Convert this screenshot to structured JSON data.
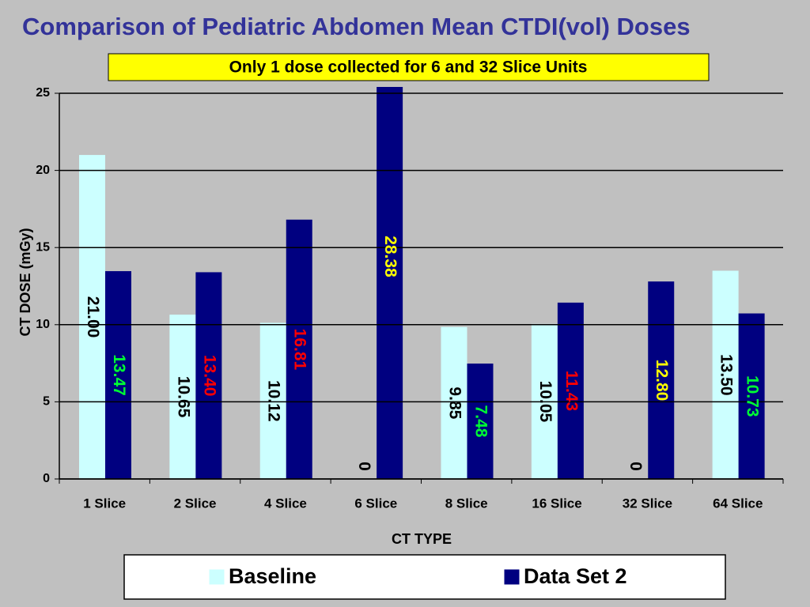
{
  "chart_data": {
    "type": "bar",
    "title": "Comparison of Pediatric Abdomen Mean CTDI(vol) Doses",
    "subtitle": "Only 1 dose collected for 6 and 32 Slice Units",
    "x_label": "CT TYPE",
    "y_label": "CT DOSE (mGy)",
    "categories": [
      "1 Slice",
      "2 Slice",
      "4 Slice",
      "6 Slice",
      "8 Slice",
      "16 Slice",
      "32 Slice",
      "64 Slice"
    ],
    "series": [
      {
        "name": "Baseline",
        "color": "#ccffff",
        "values": [
          21.0,
          10.65,
          10.12,
          0,
          9.85,
          10.05,
          0,
          13.5
        ],
        "value_labels": [
          "21.00",
          "10.65",
          "10.12",
          "0",
          "9.85",
          "10.05",
          "0",
          "13.50"
        ],
        "label_colors": [
          "#000000",
          "#000000",
          "#000000",
          "#000000",
          "#000000",
          "#000000",
          "#000000",
          "#000000"
        ]
      },
      {
        "name": "Data Set 2",
        "color": "#000080",
        "values": [
          13.47,
          13.4,
          16.81,
          28.38,
          7.48,
          11.43,
          12.8,
          10.73
        ],
        "value_labels": [
          "13.47",
          "13.40",
          "16.81",
          "28.38",
          "7.48",
          "11.43",
          "12.80",
          "10.73"
        ],
        "label_colors": [
          "#00ff33",
          "#ff0000",
          "#ff0000",
          "#ffff00",
          "#00ff33",
          "#ff0000",
          "#ffff00",
          "#00ff33"
        ]
      }
    ],
    "ylim": [
      0,
      25
    ],
    "yticks": [
      0,
      5,
      10,
      15,
      20,
      25
    ],
    "grid": true,
    "legend": "bottom"
  }
}
